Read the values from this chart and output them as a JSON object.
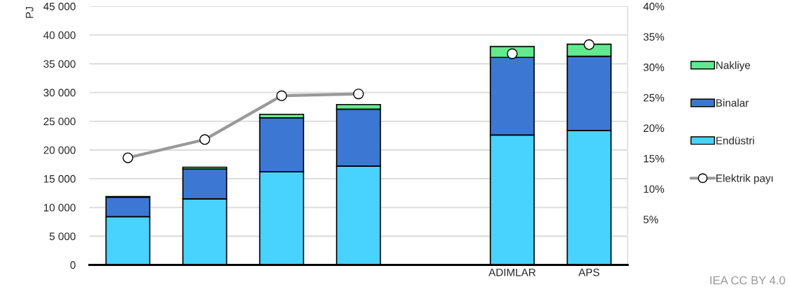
{
  "chart_data": {
    "type": "bar",
    "stacked": true,
    "ylabel": "PJ",
    "categories": [
      null,
      null,
      null,
      null,
      null,
      "ADIMLAR",
      "APS"
    ],
    "series": [
      {
        "name": "Endüstri",
        "color": "#48d3ff",
        "values": [
          8400,
          11500,
          16200,
          17200,
          null,
          22600,
          23400
        ]
      },
      {
        "name": "Binalar",
        "color": "#3c78d3",
        "values": [
          3400,
          5200,
          9400,
          9900,
          null,
          13500,
          12900
        ]
      },
      {
        "name": "Nakliye",
        "color": "#63e98d",
        "values": [
          100,
          300,
          600,
          800,
          null,
          1900,
          2100
        ]
      },
      {
        "name": "Elektrik payı",
        "type": "line",
        "axis": "y2",
        "color": "#999999",
        "marker": "circle",
        "values": [
          15.1,
          18.1,
          25.3,
          25.6,
          null,
          null,
          null
        ]
      },
      {
        "type": "scatter",
        "axis": "y2",
        "color": "#ffffff",
        "marker": "circle",
        "values": [
          null,
          null,
          null,
          null,
          null,
          32.2,
          33.7
        ]
      }
    ],
    "ylim": [
      0,
      45000
    ],
    "yticks": [
      {
        "value": 0,
        "label": "0"
      },
      {
        "value": 5000,
        "label": "5 000"
      },
      {
        "value": 10000,
        "label": "10 000"
      },
      {
        "value": 15000,
        "label": "15 000"
      },
      {
        "value": 20000,
        "label": "20 000"
      },
      {
        "value": 25000,
        "label": "25 000"
      },
      {
        "value": 30000,
        "label": "30 000"
      },
      {
        "value": 35000,
        "label": "35 000"
      },
      {
        "value": 40000,
        "label": "40 000"
      },
      {
        "value": 45000,
        "label": "45 000"
      }
    ],
    "y2lim": [
      -2.5,
      40
    ],
    "y2ticks": [
      {
        "value": 5,
        "label": "5%"
      },
      {
        "value": 10,
        "label": "10%"
      },
      {
        "value": 15,
        "label": "15%"
      },
      {
        "value": 20,
        "label": "20%"
      },
      {
        "value": 25,
        "label": "25%"
      },
      {
        "value": 30,
        "label": "30%"
      },
      {
        "value": 35,
        "label": "35%"
      },
      {
        "value": 40,
        "label": "40%"
      }
    ],
    "grid": "y",
    "legend": "right",
    "annotations": [
      "IEA CC BY 4.0"
    ]
  }
}
